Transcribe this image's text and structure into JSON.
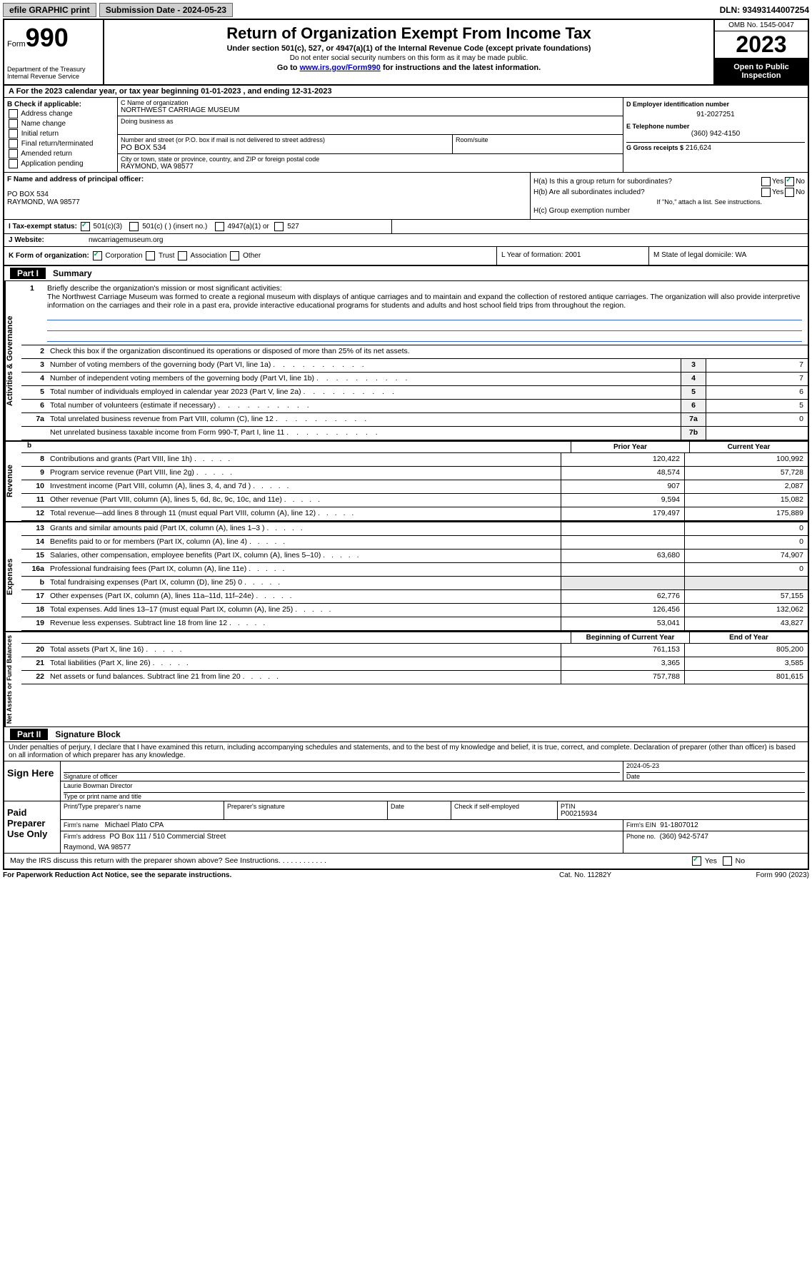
{
  "topbar": {
    "efile": "efile GRAPHIC print",
    "submission_label": "Submission Date - 2024-05-23",
    "dln": "DLN: 93493144007254"
  },
  "header": {
    "form_word": "Form",
    "form_num": "990",
    "dept": "Department of the Treasury Internal Revenue Service",
    "title": "Return of Organization Exempt From Income Tax",
    "sub1": "Under section 501(c), 527, or 4947(a)(1) of the Internal Revenue Code (except private foundations)",
    "sub2": "Do not enter social security numbers on this form as it may be made public.",
    "sub3_pre": "Go to ",
    "sub3_link": "www.irs.gov/Form990",
    "sub3_post": " for instructions and the latest information.",
    "omb": "OMB No. 1545-0047",
    "year": "2023",
    "open": "Open to Public Inspection"
  },
  "rowA": "A For the 2023 calendar year, or tax year beginning 01-01-2023   , and ending 12-31-2023",
  "colB": {
    "title": "B Check if applicable:",
    "opts": [
      "Address change",
      "Name change",
      "Initial return",
      "Final return/terminated",
      "Amended return",
      "Application pending"
    ]
  },
  "colC": {
    "name_label": "C Name of organization",
    "name": "NORTHWEST CARRIAGE MUSEUM",
    "dba_label": "Doing business as",
    "dba": "",
    "street_label": "Number and street (or P.O. box if mail is not delivered to street address)",
    "room_label": "Room/suite",
    "street": "PO BOX 534",
    "city_label": "City or town, state or province, country, and ZIP or foreign postal code",
    "city": "RAYMOND, WA  98577"
  },
  "colD": {
    "ein_label": "D Employer identification number",
    "ein": "91-2027251",
    "phone_label": "E Telephone number",
    "phone": "(360) 942-4150",
    "gross_label": "G Gross receipts $",
    "gross": "216,624"
  },
  "colF": {
    "label": "F Name and address of principal officer:",
    "addr1": "PO BOX 534",
    "addr2": "RAYMOND, WA  98577"
  },
  "colH": {
    "a": "H(a)  Is this a group return for subordinates?",
    "b": "H(b)  Are all subordinates included?",
    "b_note": "If \"No,\" attach a list. See instructions.",
    "c": "H(c)  Group exemption number",
    "yes": "Yes",
    "no": "No"
  },
  "rowI": {
    "label": "I   Tax-exempt status:",
    "o1": "501(c)(3)",
    "o2": "501(c) (  ) (insert no.)",
    "o3": "4947(a)(1) or",
    "o4": "527"
  },
  "rowJ": {
    "label": "J   Website:",
    "val": "nwcarriagemuseum.org"
  },
  "rowK": {
    "label": "K Form of organization:",
    "o1": "Corporation",
    "o2": "Trust",
    "o3": "Association",
    "o4": "Other",
    "L": "L Year of formation: 2001",
    "M": "M State of legal domicile: WA"
  },
  "part1": {
    "num": "Part I",
    "title": "Summary",
    "q1_label": "1",
    "q1": "Briefly describe the organization's mission or most significant activities:",
    "mission": "The Northwest Carriage Museum was formed to create a regional museum with displays of antique carriages and to maintain and expand the collection of restored antique carriages. The organization will also provide interpretive information on the carriages and their role in a past era, provide interactive educational programs for students and adults and host school field trips from throughout the region.",
    "q2": "Check this box      if the organization discontinued its operations or disposed of more than 25% of its net assets.",
    "lines_single": [
      {
        "n": "3",
        "d": "Number of voting members of the governing body (Part VI, line 1a)",
        "bn": "3",
        "v": "7"
      },
      {
        "n": "4",
        "d": "Number of independent voting members of the governing body (Part VI, line 1b)",
        "bn": "4",
        "v": "7"
      },
      {
        "n": "5",
        "d": "Total number of individuals employed in calendar year 2023 (Part V, line 2a)",
        "bn": "5",
        "v": "6"
      },
      {
        "n": "6",
        "d": "Total number of volunteers (estimate if necessary)",
        "bn": "6",
        "v": "5"
      },
      {
        "n": "7a",
        "d": "Total unrelated business revenue from Part VIII, column (C), line 12",
        "bn": "7a",
        "v": "0"
      },
      {
        "n": "",
        "d": "Net unrelated business taxable income from Form 990-T, Part I, line 11",
        "bn": "7b",
        "v": ""
      }
    ],
    "hdr_prior": "Prior Year",
    "hdr_curr": "Current Year",
    "revenue": [
      {
        "n": "8",
        "d": "Contributions and grants (Part VIII, line 1h)",
        "c1": "120,422",
        "c2": "100,992"
      },
      {
        "n": "9",
        "d": "Program service revenue (Part VIII, line 2g)",
        "c1": "48,574",
        "c2": "57,728"
      },
      {
        "n": "10",
        "d": "Investment income (Part VIII, column (A), lines 3, 4, and 7d )",
        "c1": "907",
        "c2": "2,087"
      },
      {
        "n": "11",
        "d": "Other revenue (Part VIII, column (A), lines 5, 6d, 8c, 9c, 10c, and 11e)",
        "c1": "9,594",
        "c2": "15,082"
      },
      {
        "n": "12",
        "d": "Total revenue—add lines 8 through 11 (must equal Part VIII, column (A), line 12)",
        "c1": "179,497",
        "c2": "175,889"
      }
    ],
    "expenses": [
      {
        "n": "13",
        "d": "Grants and similar amounts paid (Part IX, column (A), lines 1–3 )",
        "c1": "",
        "c2": "0"
      },
      {
        "n": "14",
        "d": "Benefits paid to or for members (Part IX, column (A), line 4)",
        "c1": "",
        "c2": "0"
      },
      {
        "n": "15",
        "d": "Salaries, other compensation, employee benefits (Part IX, column (A), lines 5–10)",
        "c1": "63,680",
        "c2": "74,907"
      },
      {
        "n": "16a",
        "d": "Professional fundraising fees (Part IX, column (A), line 11e)",
        "c1": "",
        "c2": "0"
      },
      {
        "n": "b",
        "d": "Total fundraising expenses (Part IX, column (D), line 25) 0",
        "c1": "shaded",
        "c2": "shaded"
      },
      {
        "n": "17",
        "d": "Other expenses (Part IX, column (A), lines 11a–11d, 11f–24e)",
        "c1": "62,776",
        "c2": "57,155"
      },
      {
        "n": "18",
        "d": "Total expenses. Add lines 13–17 (must equal Part IX, column (A), line 25)",
        "c1": "126,456",
        "c2": "132,062"
      },
      {
        "n": "19",
        "d": "Revenue less expenses. Subtract line 18 from line 12",
        "c1": "53,041",
        "c2": "43,827"
      }
    ],
    "hdr_beg": "Beginning of Current Year",
    "hdr_end": "End of Year",
    "netassets": [
      {
        "n": "20",
        "d": "Total assets (Part X, line 16)",
        "c1": "761,153",
        "c2": "805,200"
      },
      {
        "n": "21",
        "d": "Total liabilities (Part X, line 26)",
        "c1": "3,365",
        "c2": "3,585"
      },
      {
        "n": "22",
        "d": "Net assets or fund balances. Subtract line 21 from line 20",
        "c1": "757,788",
        "c2": "801,615"
      }
    ],
    "vtabs": {
      "gov": "Activities & Governance",
      "rev": "Revenue",
      "exp": "Expenses",
      "net": "Net Assets or Fund Balances"
    }
  },
  "part2": {
    "num": "Part II",
    "title": "Signature Block",
    "perjury": "Under penalties of perjury, I declare that I have examined this return, including accompanying schedules and statements, and to the best of my knowledge and belief, it is true, correct, and complete. Declaration of preparer (other than officer) is based on all information of which preparer has any knowledge.",
    "sign_here": "Sign Here",
    "sig_officer": "Signature of officer",
    "date_label": "Date",
    "date_val": "2024-05-23",
    "officer_name": "Laurie Bowman  Director",
    "type_name": "Type or print name and title",
    "paid_prep": "Paid Preparer Use Only",
    "prep_name_label": "Print/Type preparer's name",
    "prep_sig_label": "Preparer's signature",
    "check_self": "Check        if self-employed",
    "ptin_label": "PTIN",
    "ptin": "P00215934",
    "firm_name_label": "Firm's name",
    "firm_name": "Michael Plato CPA",
    "firm_ein_label": "Firm's EIN",
    "firm_ein": "91-1807012",
    "firm_addr_label": "Firm's address",
    "firm_addr": "PO Box 111 / 510 Commercial Street",
    "firm_city": "Raymond, WA  98577",
    "phone_label": "Phone no.",
    "phone": "(360) 942-5747",
    "discuss": "May the IRS discuss this return with the preparer shown above? See Instructions.",
    "yes": "Yes",
    "no": "No"
  },
  "footer": {
    "notice": "For Paperwork Reduction Act Notice, see the separate instructions.",
    "cat": "Cat. No. 11282Y",
    "form": "Form 990 (2023)"
  }
}
